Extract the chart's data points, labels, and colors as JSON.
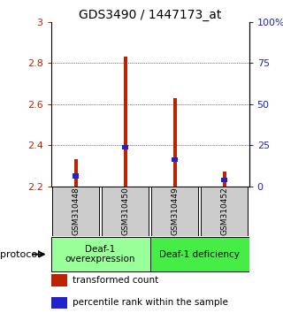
{
  "title": "GDS3490 / 1447173_at",
  "samples": [
    "GSM310448",
    "GSM310450",
    "GSM310449",
    "GSM310452"
  ],
  "red_values": [
    2.33,
    2.83,
    2.63,
    2.27
  ],
  "blue_values": [
    2.25,
    2.39,
    2.33,
    2.23
  ],
  "ylim": [
    2.2,
    3.0
  ],
  "yticks_left": [
    2.2,
    2.4,
    2.6,
    2.8,
    3.0
  ],
  "ytick_labels_left": [
    "2.2",
    "2.4",
    "2.6",
    "2.8",
    "3"
  ],
  "yticks_right_pct": [
    0,
    25,
    50,
    75,
    100
  ],
  "ytick_labels_right": [
    "0",
    "25",
    "50",
    "75",
    "100%"
  ],
  "bar_width": 0.07,
  "groups": [
    {
      "label": "Deaf-1\noverexpression",
      "color": "#99FF99",
      "indices": [
        0,
        1
      ]
    },
    {
      "label": "Deaf-1 deficiency",
      "color": "#44EE44",
      "indices": [
        2,
        3
      ]
    }
  ],
  "protocol_label": "protocol",
  "legend_red": "transformed count",
  "legend_blue": "percentile rank within the sample",
  "red_color": "#BB2200",
  "blue_color": "#2222CC",
  "sample_box_color": "#CCCCCC",
  "title_fontsize": 10,
  "axis_fontsize": 8,
  "legend_fontsize": 7.5
}
